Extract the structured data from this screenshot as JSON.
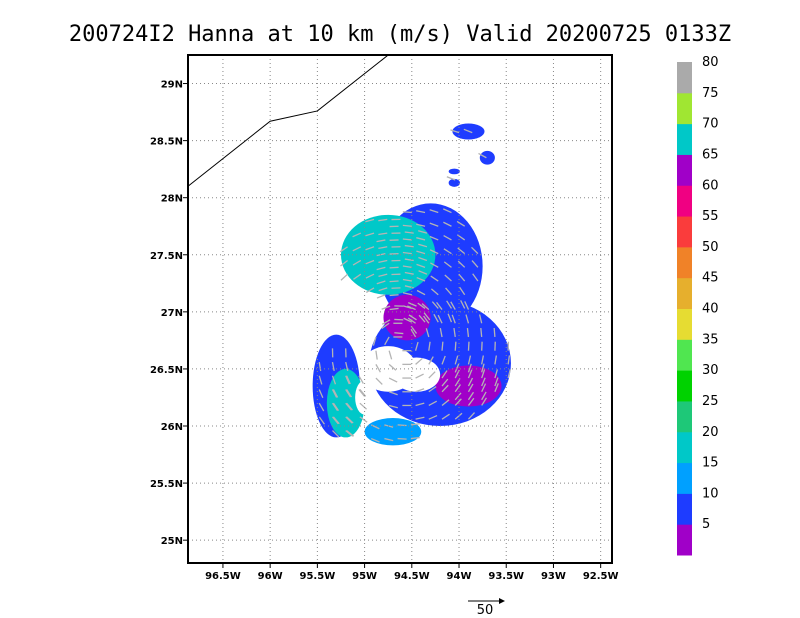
{
  "chart_data": {
    "type": "scatter",
    "title": "200724I2 Hanna at 10 km (m/s) Valid 20200725 0133Z",
    "x_ticks": [
      {
        "value": -96.5,
        "label": "96.5W"
      },
      {
        "value": -96.0,
        "label": "96W"
      },
      {
        "value": -95.5,
        "label": "95.5W"
      },
      {
        "value": -95.0,
        "label": "95W"
      },
      {
        "value": -94.5,
        "label": "94.5W"
      },
      {
        "value": -94.0,
        "label": "94W"
      },
      {
        "value": -93.5,
        "label": "93.5W"
      },
      {
        "value": -93.0,
        "label": "93W"
      },
      {
        "value": -92.5,
        "label": "92.5W"
      }
    ],
    "y_ticks": [
      {
        "value": 25.0,
        "label": "25N"
      },
      {
        "value": 25.5,
        "label": "25.5N"
      },
      {
        "value": 26.0,
        "label": "26N"
      },
      {
        "value": 26.5,
        "label": "26.5N"
      },
      {
        "value": 27.0,
        "label": "27N"
      },
      {
        "value": 27.5,
        "label": "27.5N"
      },
      {
        "value": 28.0,
        "label": "28N"
      },
      {
        "value": 28.5,
        "label": "28.5N"
      },
      {
        "value": 29.0,
        "label": "29N"
      }
    ],
    "xlim": [
      -96.87,
      -92.38
    ],
    "ylim": [
      24.8,
      29.25
    ],
    "grid": true,
    "coastline": [
      [
        -96.87,
        28.1
      ],
      [
        -96.0,
        28.67
      ],
      [
        -95.5,
        28.76
      ],
      [
        -94.75,
        29.25
      ]
    ],
    "colorbar": {
      "labels": [
        "5",
        "10",
        "15",
        "20",
        "25",
        "30",
        "35",
        "40",
        "45",
        "50",
        "55",
        "60",
        "65",
        "70",
        "75",
        "80"
      ],
      "colors": [
        "#a000c8",
        "#1e3cff",
        "#00a0ff",
        "#00c8c8",
        "#1ec878",
        "#00d200",
        "#50e650",
        "#e6dc32",
        "#e6af2d",
        "#f08228",
        "#fa3c3c",
        "#f00082",
        "#a000c8",
        "#00c8c8",
        "#a0e632",
        "#aaaaaa"
      ]
    },
    "wind_regions": [
      {
        "speed": "10",
        "lon": -94.2,
        "lat": 26.55,
        "rx": 0.75,
        "ry": 0.55
      },
      {
        "speed": "10",
        "lon": -94.3,
        "lat": 27.4,
        "rx": 0.55,
        "ry": 0.55
      },
      {
        "speed": "10",
        "lon": -95.3,
        "lat": 26.35,
        "rx": 0.25,
        "ry": 0.45
      },
      {
        "speed": "20",
        "lon": -94.75,
        "lat": 27.5,
        "rx": 0.5,
        "ry": 0.35
      },
      {
        "speed": "20",
        "lon": -95.2,
        "lat": 26.2,
        "rx": 0.2,
        "ry": 0.3
      },
      {
        "speed": "15",
        "lon": -94.7,
        "lat": 25.95,
        "rx": 0.3,
        "ry": 0.12
      },
      {
        "speed": "5",
        "lon": -94.55,
        "lat": 26.95,
        "rx": 0.25,
        "ry": 0.2
      },
      {
        "speed": "5",
        "lon": -93.9,
        "lat": 26.35,
        "rx": 0.35,
        "ry": 0.18
      },
      {
        "speed": "10",
        "lon": -93.9,
        "lat": 28.58,
        "rx": 0.17,
        "ry": 0.07
      },
      {
        "speed": "10",
        "lon": -93.7,
        "lat": 28.35,
        "rx": 0.08,
        "ry": 0.06
      },
      {
        "speed": "10",
        "lon": -94.05,
        "lat": 28.13,
        "rx": 0.06,
        "ry": 0.035
      },
      {
        "speed": "10",
        "lon": -94.05,
        "lat": 28.23,
        "rx": 0.06,
        "ry": 0.025
      }
    ],
    "rain_gaps": [
      {
        "lon": -94.75,
        "lat": 26.5,
        "rx": 0.3,
        "ry": 0.2
      },
      {
        "lon": -94.45,
        "lat": 26.45,
        "rx": 0.25,
        "ry": 0.15
      },
      {
        "lon": -95.0,
        "lat": 26.25,
        "rx": 0.1,
        "ry": 0.15
      }
    ],
    "wind_vector_reference": {
      "speed": 50,
      "label": "50"
    }
  }
}
